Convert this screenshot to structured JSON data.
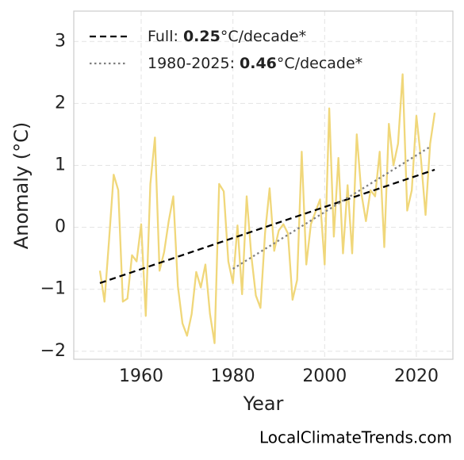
{
  "chart_data": {
    "type": "line",
    "x_label": "Year",
    "y_label": "Anomaly (°C)",
    "source": "LocalClimateTrends.com",
    "x": [
      1951,
      1952,
      1953,
      1954,
      1955,
      1956,
      1957,
      1958,
      1959,
      1960,
      1961,
      1962,
      1963,
      1964,
      1965,
      1966,
      1967,
      1968,
      1969,
      1970,
      1971,
      1972,
      1973,
      1974,
      1975,
      1976,
      1977,
      1978,
      1979,
      1980,
      1981,
      1982,
      1983,
      1984,
      1985,
      1986,
      1987,
      1988,
      1989,
      1990,
      1991,
      1992,
      1993,
      1994,
      1995,
      1996,
      1997,
      1998,
      1999,
      2000,
      2001,
      2002,
      2003,
      2004,
      2005,
      2006,
      2007,
      2008,
      2009,
      2010,
      2011,
      2012,
      2013,
      2014,
      2015,
      2016,
      2017,
      2018,
      2019,
      2020,
      2021,
      2022,
      2023,
      2024
    ],
    "series": [
      {
        "color": "#f0d77a",
        "style": "solid",
        "values": [
          -0.7,
          -1.2,
          -0.2,
          0.85,
          0.6,
          -1.2,
          -1.15,
          -0.45,
          -0.55,
          0.05,
          -1.43,
          0.7,
          1.45,
          -0.7,
          -0.4,
          0.1,
          0.5,
          -0.95,
          -1.55,
          -1.75,
          -1.4,
          -0.72,
          -0.97,
          -0.6,
          -1.4,
          -1.87,
          0.7,
          0.58,
          -0.55,
          -0.9,
          0.03,
          -1.08,
          0.5,
          -0.45,
          -1.1,
          -1.3,
          -0.1,
          0.63,
          -0.38,
          -0.05,
          0.05,
          -0.1,
          -1.17,
          -0.85,
          1.22,
          -0.6,
          0.05,
          0.25,
          0.45,
          -0.6,
          1.92,
          -0.15,
          1.12,
          -0.42,
          0.68,
          -0.42,
          1.5,
          0.55,
          0.1,
          0.6,
          0.5,
          1.22,
          -0.32,
          1.67,
          1.0,
          1.35,
          2.47,
          0.27,
          0.6,
          1.8,
          1.1,
          0.2,
          1.35,
          1.85
        ]
      },
      {
        "name": [
          "Full: ",
          "0.25",
          "°C/decade*"
        ],
        "color": "#000000",
        "style": "dashed",
        "x": [
          1951,
          2024
        ],
        "values": [
          -0.9,
          0.93
        ]
      },
      {
        "name": [
          "1980-2025: ",
          "0.46",
          "°C/decade*"
        ],
        "color": "#808080",
        "style": "dotted",
        "x": [
          1980,
          2023
        ],
        "values": [
          -0.67,
          1.3
        ]
      }
    ],
    "xlim": [
      1945.3,
      2027.96
    ],
    "xticks": [
      1960,
      1980,
      2000,
      2020
    ],
    "ylim": [
      -2.13,
      3.49
    ],
    "yticks": [
      {
        "value": -2,
        "label": "−2"
      },
      {
        "value": -1,
        "label": "−1"
      },
      0,
      1,
      2,
      3
    ],
    "grid": true,
    "legend": "upper left"
  }
}
